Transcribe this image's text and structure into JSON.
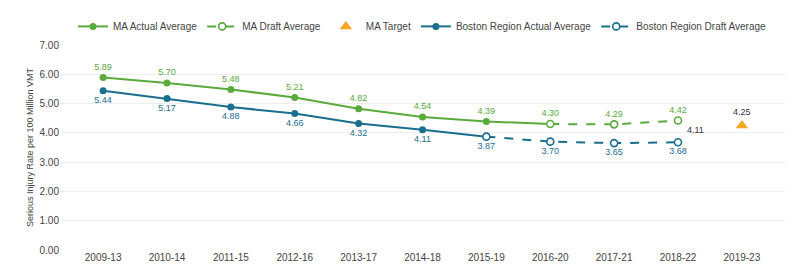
{
  "chart_data": {
    "type": "line",
    "categories": [
      "2009-13",
      "2010-14",
      "2011-15",
      "2012-16",
      "2013-17",
      "2014-18",
      "2015-19",
      "2016-20",
      "2017-21",
      "2018-22",
      "2019-23"
    ],
    "y_label": "Serious Injury Rate per 100 Million VMT",
    "ylim": [
      0.0,
      7.0
    ],
    "yticks": [
      {
        "value": 0,
        "label": "0.00"
      },
      {
        "value": 1,
        "label": "1.00"
      },
      {
        "value": 2,
        "label": "2.00"
      },
      {
        "value": 3,
        "label": "3.00"
      },
      {
        "value": 4,
        "label": "4.00"
      },
      {
        "value": 5,
        "label": "5.00"
      },
      {
        "value": 6,
        "label": "6.00"
      },
      {
        "value": 7,
        "label": "7.00"
      }
    ],
    "grid": true,
    "legend": "top",
    "data_labels": true,
    "series": [
      {
        "name": "MA Actual Average",
        "color": "#5AAA3C",
        "line_style": "solid",
        "marker": "circle",
        "values": [
          5.89,
          5.7,
          5.48,
          5.21,
          4.82,
          4.54,
          4.39,
          4.3,
          null,
          null,
          null
        ],
        "value_labels": [
          "5.89",
          "5.70",
          "5.48",
          "5.21",
          "4.82",
          "4.54",
          "4.39",
          "4.30",
          null,
          null,
          null
        ]
      },
      {
        "name": "MA Draft Average",
        "color": "#5AAA3C",
        "line_style": "dashed",
        "marker": "open circle",
        "values": [
          null,
          null,
          null,
          null,
          null,
          null,
          null,
          4.3,
          4.29,
          4.42,
          null
        ],
        "value_labels": [
          null,
          null,
          null,
          null,
          null,
          null,
          null,
          null,
          "4.29",
          "4.42",
          null
        ]
      },
      {
        "name": "MA Target",
        "color": "#F5A623",
        "line_style": "none",
        "marker": "triangle",
        "values": [
          null,
          null,
          null,
          null,
          null,
          null,
          null,
          null,
          null,
          null,
          4.25
        ],
        "value_labels": [
          null,
          null,
          null,
          null,
          null,
          null,
          null,
          null,
          null,
          null,
          "4.25"
        ]
      },
      {
        "name": "Boston Region Actual Average",
        "color": "#1A6E8E",
        "line_style": "solid",
        "marker": "circle",
        "values": [
          5.44,
          5.17,
          4.88,
          4.66,
          4.32,
          4.11,
          3.87,
          null,
          null,
          null,
          null
        ],
        "value_labels": [
          "5.44",
          "5.17",
          "4.88",
          "4.66",
          "4.32",
          "4.11",
          "3.87",
          null,
          null,
          null,
          null
        ]
      },
      {
        "name": "Boston Region Draft Average",
        "color": "#1A6E8E",
        "line_style": "dashed",
        "marker": "open circle",
        "values": [
          null,
          null,
          null,
          null,
          null,
          null,
          3.87,
          3.7,
          3.65,
          3.68,
          null
        ],
        "value_labels": [
          null,
          null,
          null,
          null,
          null,
          null,
          null,
          "3.70",
          "3.65",
          "3.68",
          null
        ]
      }
    ],
    "annotations": [
      {
        "text": "4.11",
        "x": "2018-22",
        "y": 4.11
      }
    ]
  }
}
